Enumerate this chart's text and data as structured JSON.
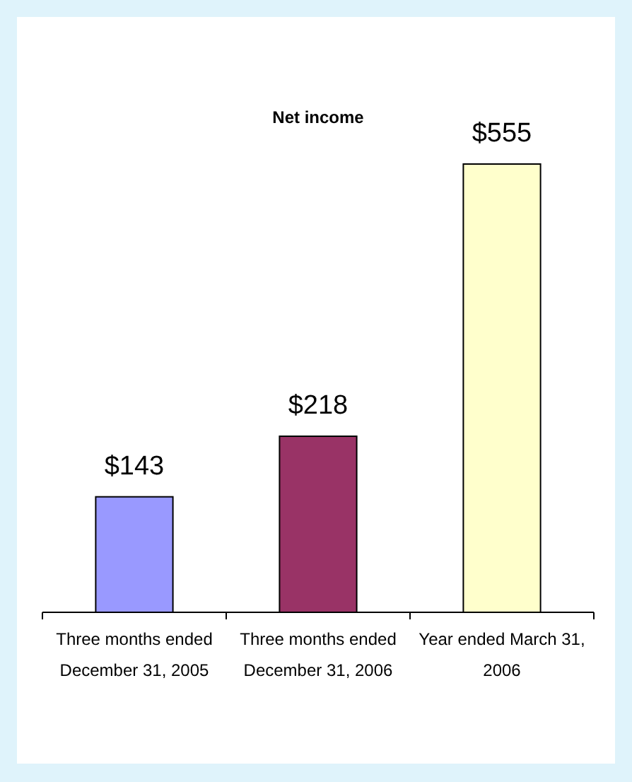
{
  "chart_data": {
    "type": "bar",
    "title": "Net income",
    "categories": [
      "Three months ended December 31, 2005",
      "Three months ended December 31, 2006",
      "Year ended March 31, 2006"
    ],
    "values": [
      143,
      218,
      555
    ],
    "colors": [
      "#9999ff",
      "#993366",
      "#ffffcc"
    ],
    "value_labels": [
      "$143",
      "$218",
      "$555"
    ]
  }
}
